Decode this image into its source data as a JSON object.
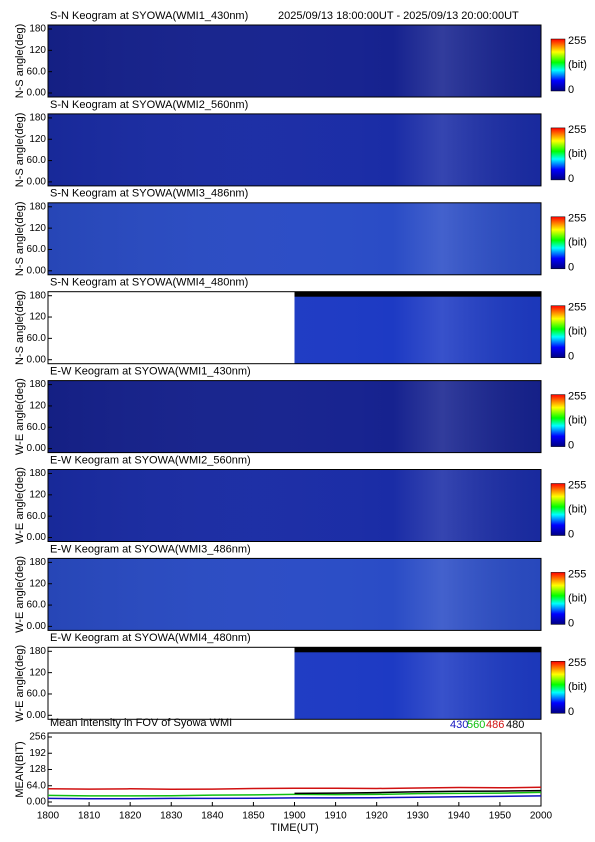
{
  "chart_data": [
    {
      "type": "keogram",
      "title": "S-N Keogram at SYOWA(WMI1_430nm)",
      "subtitle": "2025/09/13 18:00:00UT - 2025/09/13 20:00:00UT",
      "ylabel": "N-S angle(deg)",
      "ylim": [
        0,
        180
      ],
      "yticks": [
        {
          "value": 0,
          "label": "0.00"
        },
        {
          "value": 60,
          "label": "60.0"
        },
        120,
        180
      ],
      "clim": [
        0,
        255
      ],
      "clabel": "(bit)",
      "color": "#16228f"
    },
    {
      "type": "keogram",
      "title": "S-N Keogram at SYOWA(WMI2_560nm)",
      "ylabel": "N-S angle(deg)",
      "ylim": [
        0,
        180
      ],
      "yticks": [
        {
          "value": 0,
          "label": "0.00"
        },
        {
          "value": 60,
          "label": "60.0"
        },
        120,
        180
      ],
      "clim": [
        0,
        255
      ],
      "clabel": "(bit)",
      "color": "#1a2ca6"
    },
    {
      "type": "keogram",
      "title": "S-N Keogram at SYOWA(WMI3_486nm)",
      "ylabel": "N-S angle(deg)",
      "ylim": [
        0,
        180
      ],
      "yticks": [
        {
          "value": 0,
          "label": "0.00"
        },
        {
          "value": 60,
          "label": "60.0"
        },
        120,
        180
      ],
      "clim": [
        0,
        255
      ],
      "clabel": "(bit)",
      "color": "#2a4cc6"
    },
    {
      "type": "keogram",
      "title": "S-N Keogram at SYOWA(WMI4_480nm)",
      "ylabel": "N-S angle(deg)",
      "ylim": [
        0,
        180
      ],
      "yticks": [
        {
          "value": 0,
          "label": "0.00"
        },
        {
          "value": 60,
          "label": "60.0"
        },
        120,
        180
      ],
      "clim": [
        0,
        255
      ],
      "clabel": "(bit)",
      "color": "#1d3ac4",
      "data_from": "1900"
    },
    {
      "type": "keogram",
      "title": "E-W Keogram at SYOWA(WMI1_430nm)",
      "ylabel": "W-E angle(deg)",
      "ylim": [
        0,
        180
      ],
      "yticks": [
        {
          "value": 0,
          "label": "0.00"
        },
        {
          "value": 60,
          "label": "60.0"
        },
        120,
        180
      ],
      "clim": [
        0,
        255
      ],
      "clabel": "(bit)",
      "color": "#16228f"
    },
    {
      "type": "keogram",
      "title": "E-W Keogram at SYOWA(WMI2_560nm)",
      "ylabel": "W-E angle(deg)",
      "ylim": [
        0,
        180
      ],
      "yticks": [
        {
          "value": 0,
          "label": "0.00"
        },
        {
          "value": 60,
          "label": "60.0"
        },
        120,
        180
      ],
      "clim": [
        0,
        255
      ],
      "clabel": "(bit)",
      "color": "#1a2ca6"
    },
    {
      "type": "keogram",
      "title": "E-W Keogram at SYOWA(WMI3_486nm)",
      "ylabel": "W-E angle(deg)",
      "ylim": [
        0,
        180
      ],
      "yticks": [
        {
          "value": 0,
          "label": "0.00"
        },
        {
          "value": 60,
          "label": "60.0"
        },
        120,
        180
      ],
      "clim": [
        0,
        255
      ],
      "clabel": "(bit)",
      "color": "#2a4cc6"
    },
    {
      "type": "keogram",
      "title": "E-W Keogram at SYOWA(WMI4_480nm)",
      "ylabel": "W-E angle(deg)",
      "ylim": [
        0,
        180
      ],
      "yticks": [
        {
          "value": 0,
          "label": "0.00"
        },
        {
          "value": 60,
          "label": "60.0"
        },
        120,
        180
      ],
      "clim": [
        0,
        255
      ],
      "clabel": "(bit)",
      "color": "#1d3ac4",
      "data_from": "1900"
    },
    {
      "type": "line",
      "title": "Mean intensity in FOV of Syowa WMI",
      "ylabel": "MEAN(BIT)",
      "xlabel": "TIME(UT)",
      "categories": [
        "1800",
        "1810",
        "1820",
        "1830",
        "1840",
        "1850",
        "1900",
        "1910",
        "1920",
        "1930",
        "1940",
        "1950",
        "2000"
      ],
      "ylim": [
        0,
        256
      ],
      "yticks": [
        {
          "value": 0,
          "label": "0.00"
        },
        {
          "value": 64,
          "label": "64.0"
        },
        128,
        192,
        256
      ],
      "series": [
        {
          "name": "430",
          "color": "#1010c0",
          "values": [
            14,
            13,
            13,
            14,
            14,
            15,
            16,
            16,
            17,
            19,
            21,
            22,
            24
          ]
        },
        {
          "name": "560",
          "color": "#10c010",
          "values": [
            26,
            24,
            24,
            25,
            27,
            28,
            30,
            29,
            30,
            33,
            34,
            35,
            38
          ]
        },
        {
          "name": "486",
          "color": "#d01010",
          "values": [
            52,
            51,
            52,
            50,
            51,
            53,
            54,
            54,
            53,
            55,
            57,
            56,
            58
          ]
        },
        {
          "name": "480",
          "color": "#000000",
          "values": [
            null,
            null,
            null,
            null,
            null,
            null,
            34,
            35,
            37,
            40,
            42,
            43,
            45
          ]
        }
      ]
    }
  ]
}
